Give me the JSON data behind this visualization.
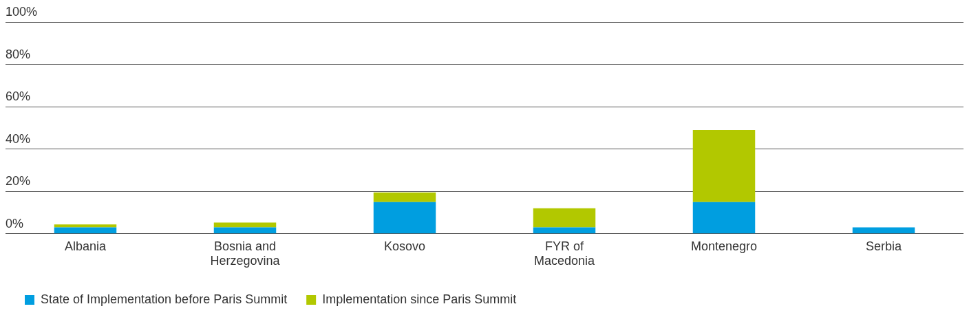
{
  "chart_data": {
    "type": "bar",
    "stacked": true,
    "categories": [
      "Albania",
      "Bosnia and Herzegovina",
      "Kosovo",
      "FYR of Macedonia",
      "Montenegro",
      "Serbia"
    ],
    "series": [
      {
        "name": "State of Implementation before Paris Summit",
        "color": "#009ee0",
        "values": [
          3,
          3,
          15,
          3,
          15,
          3
        ]
      },
      {
        "name": "Implementation since Paris Summit",
        "color": "#b2c800",
        "values": [
          1.4,
          2.3,
          4.5,
          9,
          34,
          0
        ]
      }
    ],
    "ylim": [
      0,
      100
    ],
    "yticks": [
      {
        "value": 0,
        "label": "0%"
      },
      {
        "value": 20,
        "label": "20%"
      },
      {
        "value": 40,
        "label": "40%"
      },
      {
        "value": 60,
        "label": "60%"
      },
      {
        "value": 80,
        "label": "80%"
      },
      {
        "value": 100,
        "label": "100%"
      }
    ],
    "grid": "y",
    "legend": "bottom left"
  }
}
